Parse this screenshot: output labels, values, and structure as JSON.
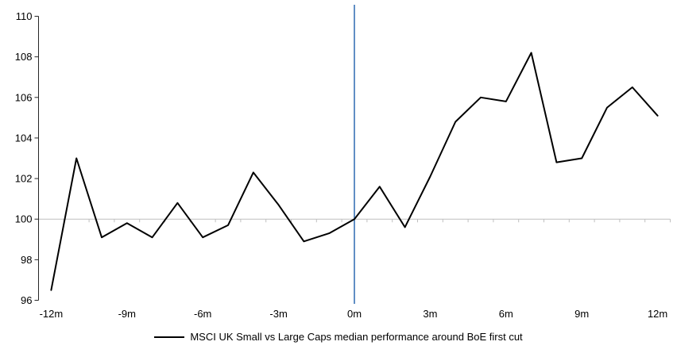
{
  "chart_data": {
    "type": "line",
    "title": "",
    "xlabel": "",
    "ylabel": "",
    "x": [
      -12,
      -11,
      -10,
      -9,
      -8,
      -7,
      -6,
      -5,
      -4,
      -3,
      -2,
      -1,
      0,
      1,
      2,
      3,
      4,
      5,
      6,
      7,
      8,
      9,
      10,
      11,
      12
    ],
    "series": [
      {
        "name": "MSCI UK Small vs Large Caps median performance around BoE first cut",
        "color": "#000000",
        "values": [
          96.5,
          103.0,
          99.1,
          99.8,
          99.1,
          100.8,
          99.1,
          99.7,
          102.3,
          100.7,
          98.9,
          99.3,
          100.0,
          101.6,
          99.6,
          102.1,
          104.8,
          106.0,
          105.8,
          108.2,
          102.8,
          103.0,
          105.5,
          106.5,
          105.1
        ]
      }
    ],
    "ylim": [
      96,
      110
    ],
    "yticks": [
      96,
      98,
      100,
      102,
      104,
      106,
      108,
      110
    ],
    "xtick_positions": [
      -12,
      -9,
      -6,
      -3,
      0,
      3,
      6,
      9,
      12
    ],
    "xtick_labels": [
      "-12m",
      "-9m",
      "-6m",
      "-3m",
      "0m",
      "3m",
      "6m",
      "9m",
      "12m"
    ],
    "baseline": {
      "value": 100,
      "color": "#bfbfbf"
    },
    "event_line": {
      "x": 0,
      "color": "#4f81bd"
    },
    "grid": false,
    "legend_position": "bottom",
    "axis_color": "#262626",
    "text_color": "#000000"
  }
}
